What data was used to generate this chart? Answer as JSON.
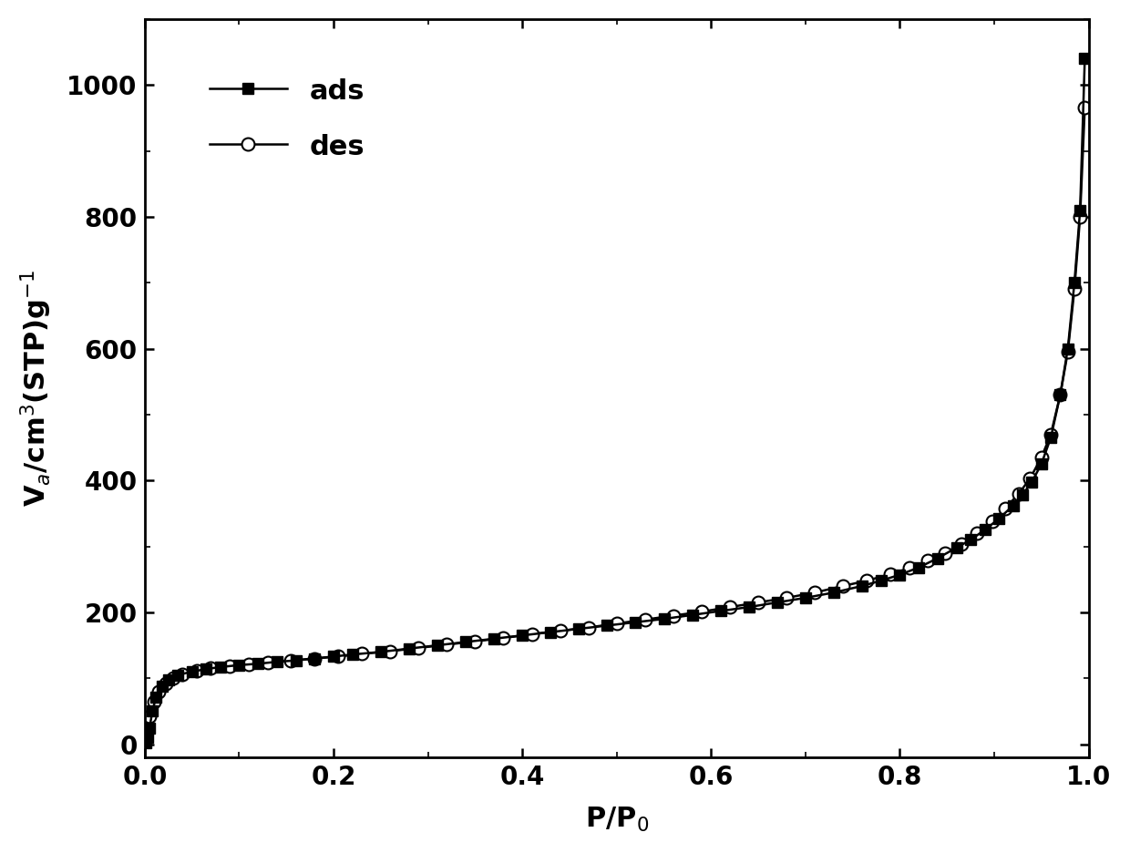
{
  "ads_x": [
    0.001,
    0.003,
    0.005,
    0.008,
    0.012,
    0.018,
    0.025,
    0.035,
    0.05,
    0.065,
    0.08,
    0.1,
    0.12,
    0.14,
    0.16,
    0.18,
    0.2,
    0.22,
    0.25,
    0.28,
    0.31,
    0.34,
    0.37,
    0.4,
    0.43,
    0.46,
    0.49,
    0.52,
    0.55,
    0.58,
    0.61,
    0.64,
    0.67,
    0.7,
    0.73,
    0.76,
    0.78,
    0.8,
    0.82,
    0.84,
    0.86,
    0.875,
    0.89,
    0.905,
    0.92,
    0.93,
    0.94,
    0.95,
    0.96,
    0.97,
    0.978,
    0.985,
    0.991,
    0.996
  ],
  "ads_y": [
    2,
    10,
    25,
    50,
    72,
    88,
    98,
    105,
    110,
    114,
    117,
    120,
    122,
    125,
    127,
    130,
    133,
    136,
    140,
    145,
    150,
    155,
    160,
    165,
    170,
    175,
    180,
    185,
    190,
    196,
    202,
    208,
    215,
    222,
    230,
    240,
    248,
    257,
    268,
    282,
    298,
    310,
    325,
    342,
    362,
    378,
    398,
    425,
    465,
    530,
    600,
    700,
    810,
    1040
  ],
  "des_x": [
    0.005,
    0.01,
    0.015,
    0.022,
    0.03,
    0.04,
    0.055,
    0.07,
    0.09,
    0.11,
    0.13,
    0.155,
    0.18,
    0.205,
    0.23,
    0.26,
    0.29,
    0.32,
    0.35,
    0.38,
    0.41,
    0.44,
    0.47,
    0.5,
    0.53,
    0.56,
    0.59,
    0.62,
    0.65,
    0.68,
    0.71,
    0.74,
    0.765,
    0.79,
    0.81,
    0.83,
    0.848,
    0.865,
    0.882,
    0.898,
    0.912,
    0.926,
    0.938,
    0.95,
    0.96,
    0.97,
    0.978,
    0.985,
    0.991,
    0.996
  ],
  "des_y": [
    42,
    65,
    80,
    92,
    100,
    106,
    111,
    115,
    118,
    121,
    124,
    127,
    130,
    133,
    137,
    141,
    146,
    151,
    156,
    161,
    167,
    172,
    177,
    183,
    189,
    195,
    201,
    208,
    215,
    222,
    230,
    240,
    248,
    258,
    267,
    278,
    290,
    304,
    320,
    338,
    358,
    380,
    403,
    435,
    470,
    530,
    595,
    690,
    800,
    965
  ],
  "xlabel": "P/P$_0$",
  "ylabel": "V$_a$/cm$^3$(STP)g$^{-1}$",
  "xlim": [
    0.0,
    1.0
  ],
  "ylim": [
    -20,
    1100
  ],
  "xticks": [
    0.0,
    0.2,
    0.4,
    0.6,
    0.8,
    1.0
  ],
  "yticks": [
    0,
    200,
    400,
    600,
    800,
    1000
  ],
  "ads_label": "ads",
  "des_label": "des",
  "line_color": "#000000",
  "bg_color": "#ffffff",
  "label_fontsize": 22,
  "tick_fontsize": 20,
  "legend_fontsize": 22,
  "linewidth": 1.8,
  "marker_size_ads": 9,
  "marker_size_des": 10
}
